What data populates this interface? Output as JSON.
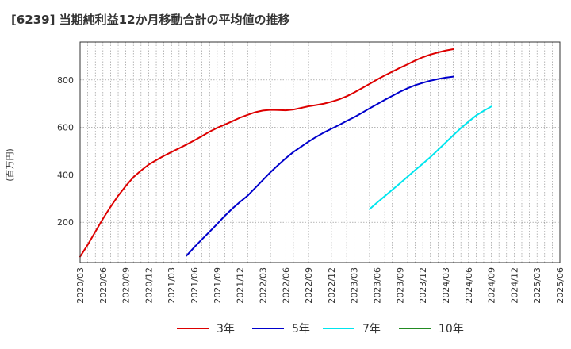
{
  "chart_data": {
    "type": "line",
    "title": "[6239]  当期純利益12か月移動合計の平均値の推移",
    "ylabel": "(百万円)",
    "xlabel": "",
    "ylim": [
      30,
      960
    ],
    "yticks": [
      200,
      400,
      600,
      800
    ],
    "x_tick_labels": [
      "2020/03",
      "2020/06",
      "2020/09",
      "2020/12",
      "2021/03",
      "2021/06",
      "2021/09",
      "2021/12",
      "2022/03",
      "2022/06",
      "2022/09",
      "2022/12",
      "2023/03",
      "2023/06",
      "2023/09",
      "2023/12",
      "2024/03",
      "2024/06",
      "2024/09",
      "2024/12",
      "2025/03",
      "2025/06"
    ],
    "x_start": "2020/03",
    "x_range_months": [
      0,
      63
    ],
    "grid": true,
    "legend_position": "bottom",
    "series": [
      {
        "name": "3年",
        "color": "#dd0000",
        "start": "2020/03",
        "values": [
          55,
          105,
          160,
          215,
          265,
          312,
          353,
          390,
          418,
          443,
          462,
          480,
          496,
          512,
          528,
          545,
          563,
          582,
          598,
          612,
          626,
          641,
          653,
          664,
          671,
          674,
          673,
          672,
          675,
          682,
          689,
          694,
          700,
          708,
          718,
          731,
          747,
          765,
          783,
          802,
          819,
          835,
          851,
          866,
          882,
          896,
          907,
          916,
          924,
          930
        ]
      },
      {
        "name": "5年",
        "color": "#0000cc",
        "start": "2021/05",
        "values": [
          60,
          95,
          128,
          160,
          193,
          227,
          258,
          286,
          312,
          345,
          378,
          411,
          441,
          470,
          496,
          518,
          540,
          560,
          578,
          594,
          610,
          627,
          643,
          661,
          680,
          698,
          716,
          733,
          750,
          765,
          778,
          788,
          797,
          804,
          810,
          814
        ]
      },
      {
        "name": "7年",
        "color": "#00e5ee",
        "start": "2023/05",
        "values": [
          255,
          283,
          310,
          337,
          364,
          392,
          420,
          447,
          475,
          505,
          536,
          567,
          597,
          624,
          650,
          670,
          688
        ]
      },
      {
        "name": "10年",
        "color": "#228b22",
        "start": "",
        "values": []
      }
    ]
  }
}
